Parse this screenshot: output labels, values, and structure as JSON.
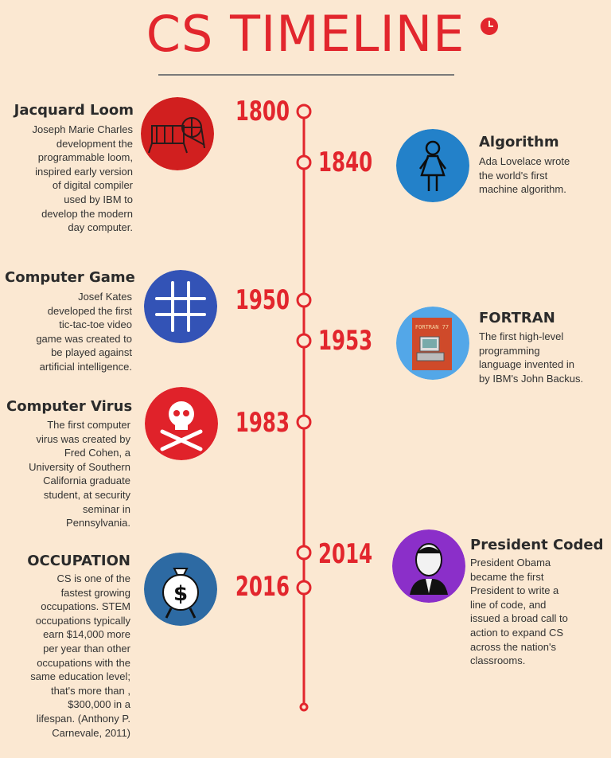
{
  "header": {
    "title": "CS TIMELINE"
  },
  "events": [
    {
      "year": "1800",
      "title": "Jacquard Loom",
      "description": "Joseph Marie Charles\ndevelopment  the\nprogrammable loom,\ninspired early version\nof digital compiler\nused by IBM to\ndevelop the modern\nday computer.",
      "icon": "loom-icon",
      "icon_color": "#d11f1f"
    },
    {
      "year": "1840",
      "title": "Algorithm",
      "description": "Ada Lovelace wrote\nthe world's first\nmachine algorithm.",
      "icon": "woman-icon",
      "icon_color": "#2381c9"
    },
    {
      "year": "1950",
      "title": "Computer Game",
      "description": "Josef Kates\ndeveloped the first\ntic-tac-toe video\ngame was created to\nbe played against\nartificial intelligence.",
      "icon": "tic-tac-toe-icon",
      "icon_color": "#3353b6"
    },
    {
      "year": "1953",
      "title": "FORTRAN",
      "description": "The first high-level\nprogramming\nlanguage invented in\nby IBM's John Backus.",
      "icon": "fortran-manual-icon",
      "icon_color": "#53a7e8",
      "icon_text": "FORTRAN 77"
    },
    {
      "year": "1983",
      "title": "Computer Virus",
      "description": "The first computer\nvirus was created by\nFred Cohen, a\nUniversity of Southern\nCalifornia graduate\nstudent, at security\nseminar in\nPennsylvania.",
      "icon": "skull-crossbones-icon",
      "icon_color": "#e0222a"
    },
    {
      "year": "2014",
      "title": "President Coded",
      "description": "President Obama\nbecame the first\nPresident to write a\nline of code, and\nissued a broad call to\naction to expand CS\nacross the nation's\nclassrooms.",
      "icon": "president-portrait-icon",
      "icon_color": "#8b2fc9"
    },
    {
      "year": "2016",
      "title": "OCCUPATION",
      "description": "CS is one of the\nfastest growing\noccupations. STEM\noccupations typically\nearn $14,000 more\nper year than other\noccupations with the\nsame education level;\nthat's more than ,\n$300,000 in a\nlifespan. (Anthony P.\nCarnevale, 2011)",
      "icon": "money-bag-icon",
      "icon_color": "#2d6aa3",
      "icon_text": "$"
    }
  ],
  "colors": {
    "accent": "#e2262d",
    "background": "#fbe8d2"
  }
}
